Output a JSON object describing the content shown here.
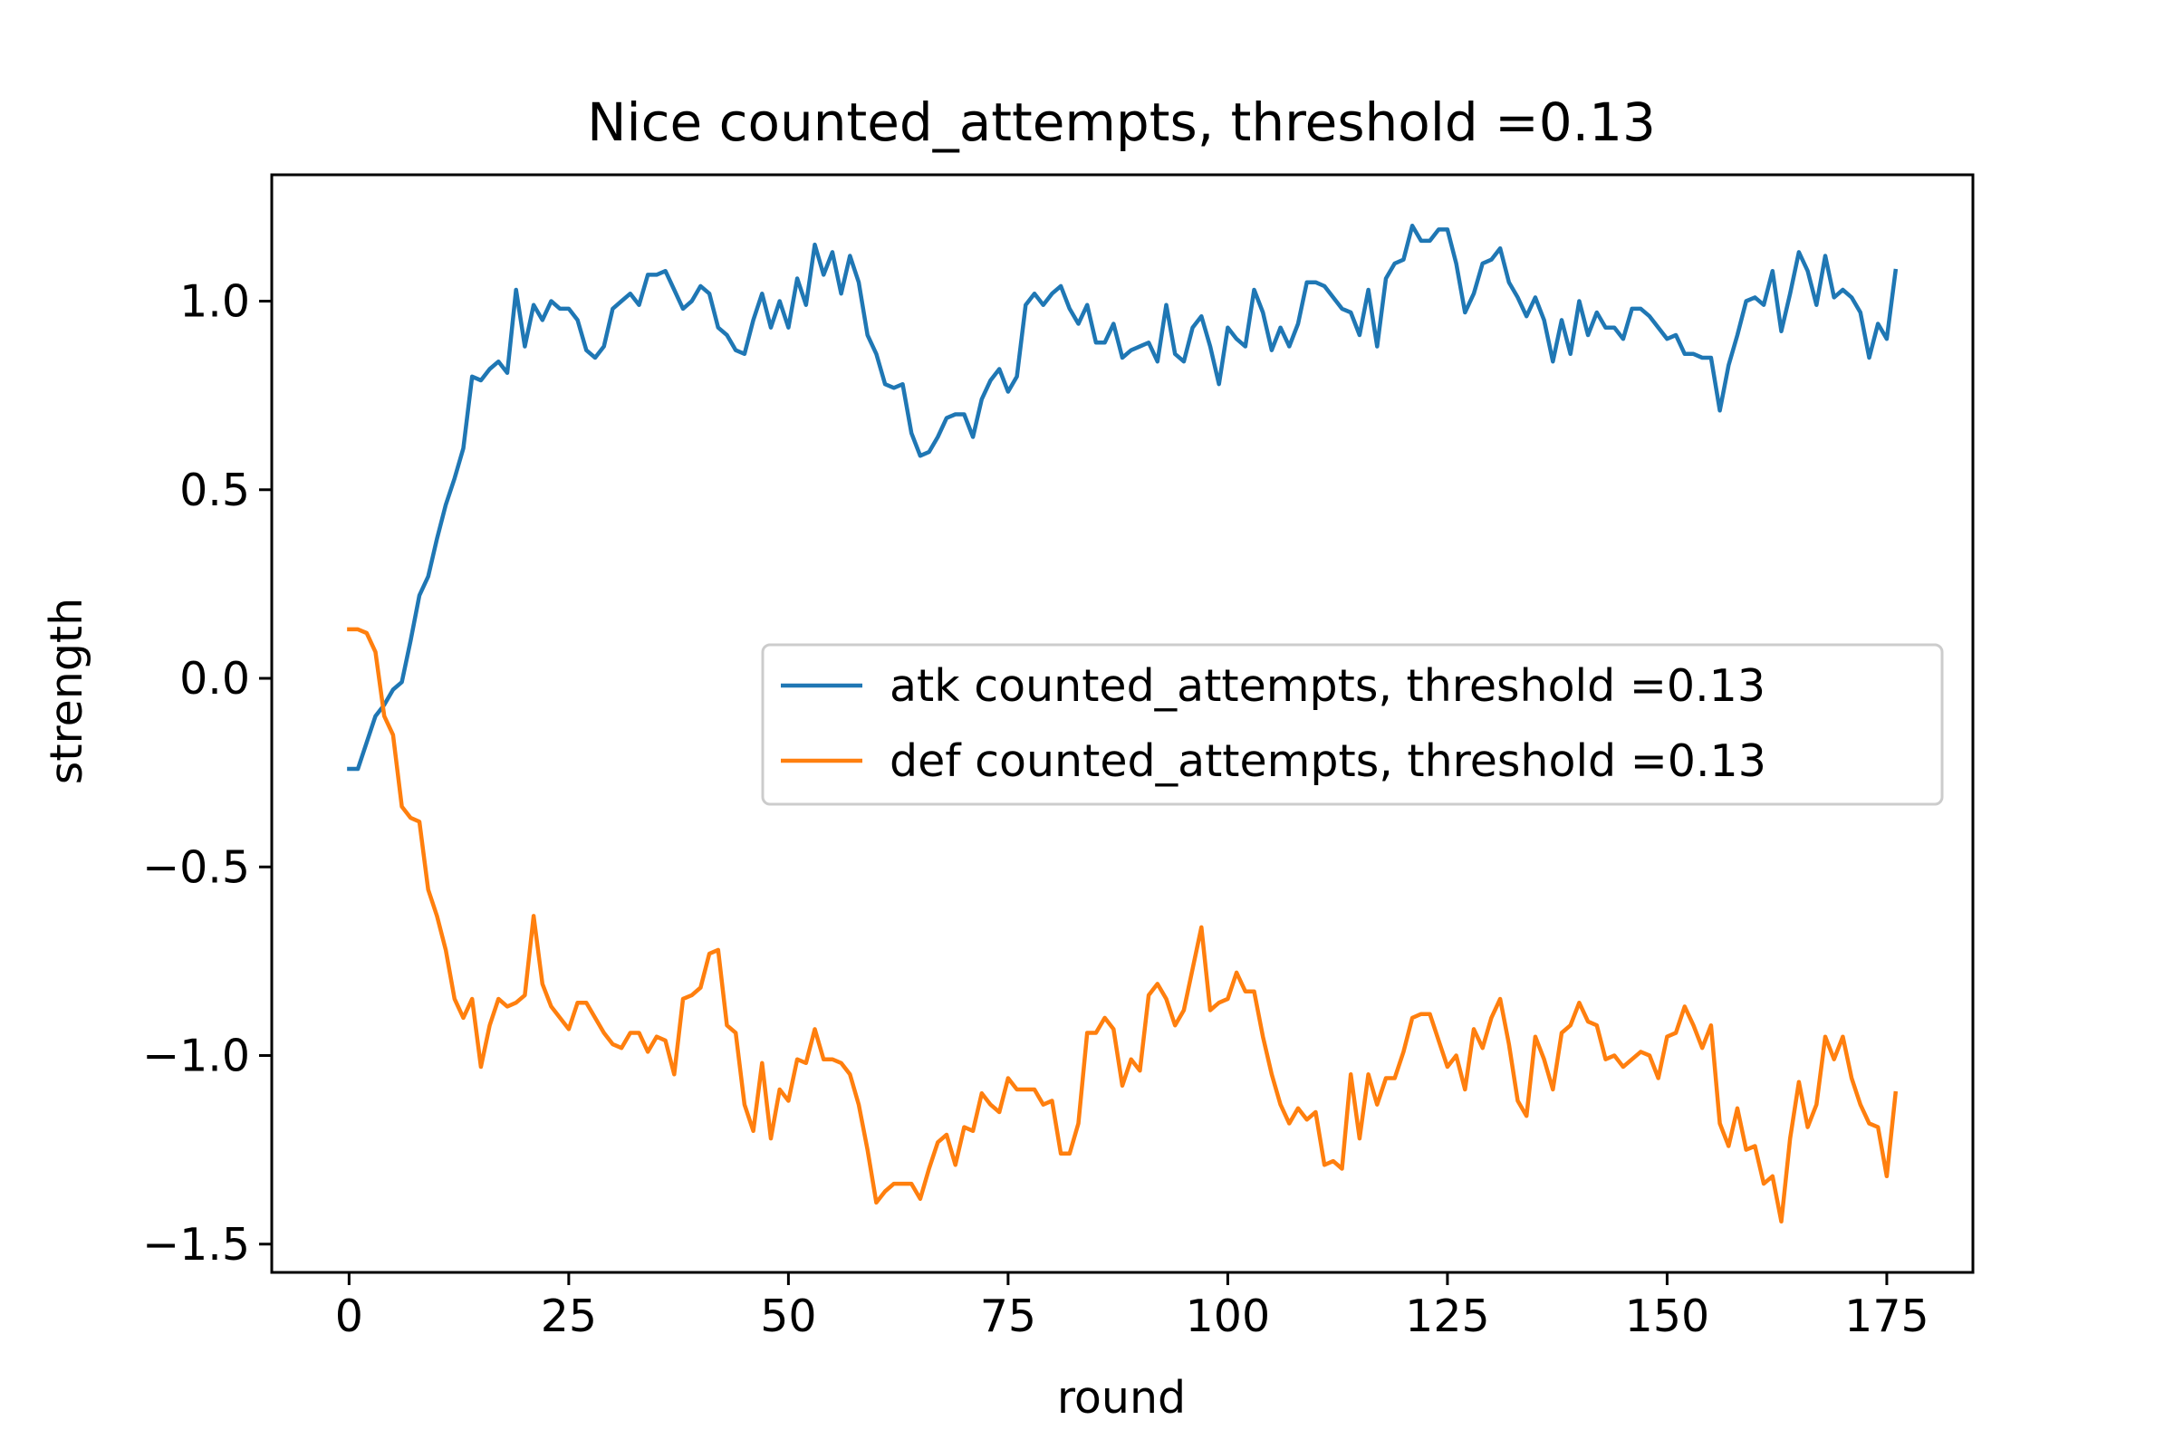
{
  "chart_data": {
    "type": "line",
    "title": "Nice counted_attempts, threshold =0.13",
    "xlabel": "round",
    "ylabel": "strength",
    "xlim": [
      -8.8,
      184.8
    ],
    "ylim": [
      -1.575,
      1.335
    ],
    "xticks": [
      0,
      25,
      50,
      75,
      100,
      125,
      150,
      175
    ],
    "xtick_labels": [
      "0",
      "25",
      "50",
      "75",
      "100",
      "125",
      "150",
      "175"
    ],
    "yticks": [
      -1.5,
      -1.0,
      -0.5,
      0.0,
      0.5,
      1.0
    ],
    "ytick_labels": [
      "−1.5",
      "−1.0",
      "−0.5",
      "0.0",
      "0.5",
      "1.0"
    ],
    "grid": false,
    "legend_position": "center-right",
    "x_start": 0,
    "x_step": 1,
    "series": [
      {
        "name": "atk counted_attempts, threshold =0.13",
        "color": "#1f77b4",
        "values": [
          -0.24,
          -0.24,
          -0.17,
          -0.1,
          -0.07,
          -0.03,
          -0.01,
          0.1,
          0.22,
          0.27,
          0.37,
          0.46,
          0.53,
          0.61,
          0.8,
          0.79,
          0.82,
          0.84,
          0.81,
          1.03,
          0.88,
          0.99,
          0.95,
          1.0,
          0.98,
          0.98,
          0.95,
          0.87,
          0.85,
          0.88,
          0.98,
          1.0,
          1.02,
          0.99,
          1.07,
          1.07,
          1.08,
          1.03,
          0.98,
          1.0,
          1.04,
          1.02,
          0.93,
          0.91,
          0.87,
          0.86,
          0.95,
          1.02,
          0.93,
          1.0,
          0.93,
          1.06,
          0.99,
          1.15,
          1.07,
          1.13,
          1.02,
          1.12,
          1.05,
          0.91,
          0.86,
          0.78,
          0.77,
          0.78,
          0.65,
          0.59,
          0.6,
          0.64,
          0.69,
          0.7,
          0.7,
          0.64,
          0.74,
          0.79,
          0.82,
          0.76,
          0.8,
          0.99,
          1.02,
          0.99,
          1.02,
          1.04,
          0.98,
          0.94,
          0.99,
          0.89,
          0.89,
          0.94,
          0.85,
          0.87,
          0.88,
          0.89,
          0.84,
          0.99,
          0.86,
          0.84,
          0.93,
          0.96,
          0.88,
          0.78,
          0.93,
          0.9,
          0.88,
          1.03,
          0.97,
          0.87,
          0.93,
          0.88,
          0.94,
          1.05,
          1.05,
          1.04,
          1.01,
          0.98,
          0.97,
          0.91,
          1.03,
          0.88,
          1.06,
          1.1,
          1.11,
          1.2,
          1.16,
          1.16,
          1.19,
          1.19,
          1.1,
          0.97,
          1.02,
          1.1,
          1.11,
          1.14,
          1.05,
          1.01,
          0.96,
          1.01,
          0.95,
          0.84,
          0.95,
          0.86,
          1.0,
          0.91,
          0.97,
          0.93,
          0.93,
          0.9,
          0.98,
          0.98,
          0.96,
          0.93,
          0.9,
          0.91,
          0.86,
          0.86,
          0.85,
          0.85,
          0.71,
          0.83,
          0.91,
          1.0,
          1.01,
          0.99,
          1.08,
          0.92,
          1.02,
          1.13,
          1.08,
          0.99,
          1.12,
          1.01,
          1.03,
          1.01,
          0.97,
          0.85,
          0.94,
          0.9,
          1.08
        ]
      },
      {
        "name": "def counted_attempts, threshold =0.13",
        "color": "#ff7f0e",
        "values": [
          0.13,
          0.13,
          0.12,
          0.07,
          -0.1,
          -0.15,
          -0.34,
          -0.37,
          -0.38,
          -0.56,
          -0.63,
          -0.72,
          -0.85,
          -0.9,
          -0.85,
          -1.03,
          -0.92,
          -0.85,
          -0.87,
          -0.86,
          -0.84,
          -0.63,
          -0.81,
          -0.87,
          -0.9,
          -0.93,
          -0.86,
          -0.86,
          -0.9,
          -0.94,
          -0.97,
          -0.98,
          -0.94,
          -0.94,
          -0.99,
          -0.95,
          -0.96,
          -1.05,
          -0.85,
          -0.84,
          -0.82,
          -0.73,
          -0.72,
          -0.92,
          -0.94,
          -1.13,
          -1.2,
          -1.02,
          -1.22,
          -1.09,
          -1.12,
          -1.01,
          -1.02,
          -0.93,
          -1.01,
          -1.01,
          -1.02,
          -1.05,
          -1.13,
          -1.25,
          -1.39,
          -1.36,
          -1.34,
          -1.34,
          -1.34,
          -1.38,
          -1.3,
          -1.23,
          -1.21,
          -1.29,
          -1.19,
          -1.2,
          -1.1,
          -1.13,
          -1.15,
          -1.06,
          -1.09,
          -1.09,
          -1.09,
          -1.13,
          -1.12,
          -1.26,
          -1.26,
          -1.18,
          -0.94,
          -0.94,
          -0.9,
          -0.93,
          -1.08,
          -1.01,
          -1.04,
          -0.84,
          -0.81,
          -0.85,
          -0.92,
          -0.88,
          -0.77,
          -0.66,
          -0.88,
          -0.86,
          -0.85,
          -0.78,
          -0.83,
          -0.83,
          -0.95,
          -1.05,
          -1.13,
          -1.18,
          -1.14,
          -1.17,
          -1.15,
          -1.29,
          -1.28,
          -1.3,
          -1.05,
          -1.22,
          -1.05,
          -1.13,
          -1.06,
          -1.06,
          -0.99,
          -0.9,
          -0.89,
          -0.89,
          -0.96,
          -1.03,
          -1.0,
          -1.09,
          -0.93,
          -0.98,
          -0.9,
          -0.85,
          -0.97,
          -1.12,
          -1.16,
          -0.95,
          -1.01,
          -1.09,
          -0.94,
          -0.92,
          -0.86,
          -0.91,
          -0.92,
          -1.01,
          -1.0,
          -1.03,
          -1.01,
          -0.99,
          -1.0,
          -1.06,
          -0.95,
          -0.94,
          -0.87,
          -0.92,
          -0.98,
          -0.92,
          -1.18,
          -1.24,
          -1.14,
          -1.25,
          -1.24,
          -1.34,
          -1.32,
          -1.44,
          -1.22,
          -1.07,
          -1.19,
          -1.13,
          -0.95,
          -1.01,
          -0.95,
          -1.06,
          -1.13,
          -1.18,
          -1.19,
          -1.32,
          -1.1
        ]
      }
    ]
  }
}
